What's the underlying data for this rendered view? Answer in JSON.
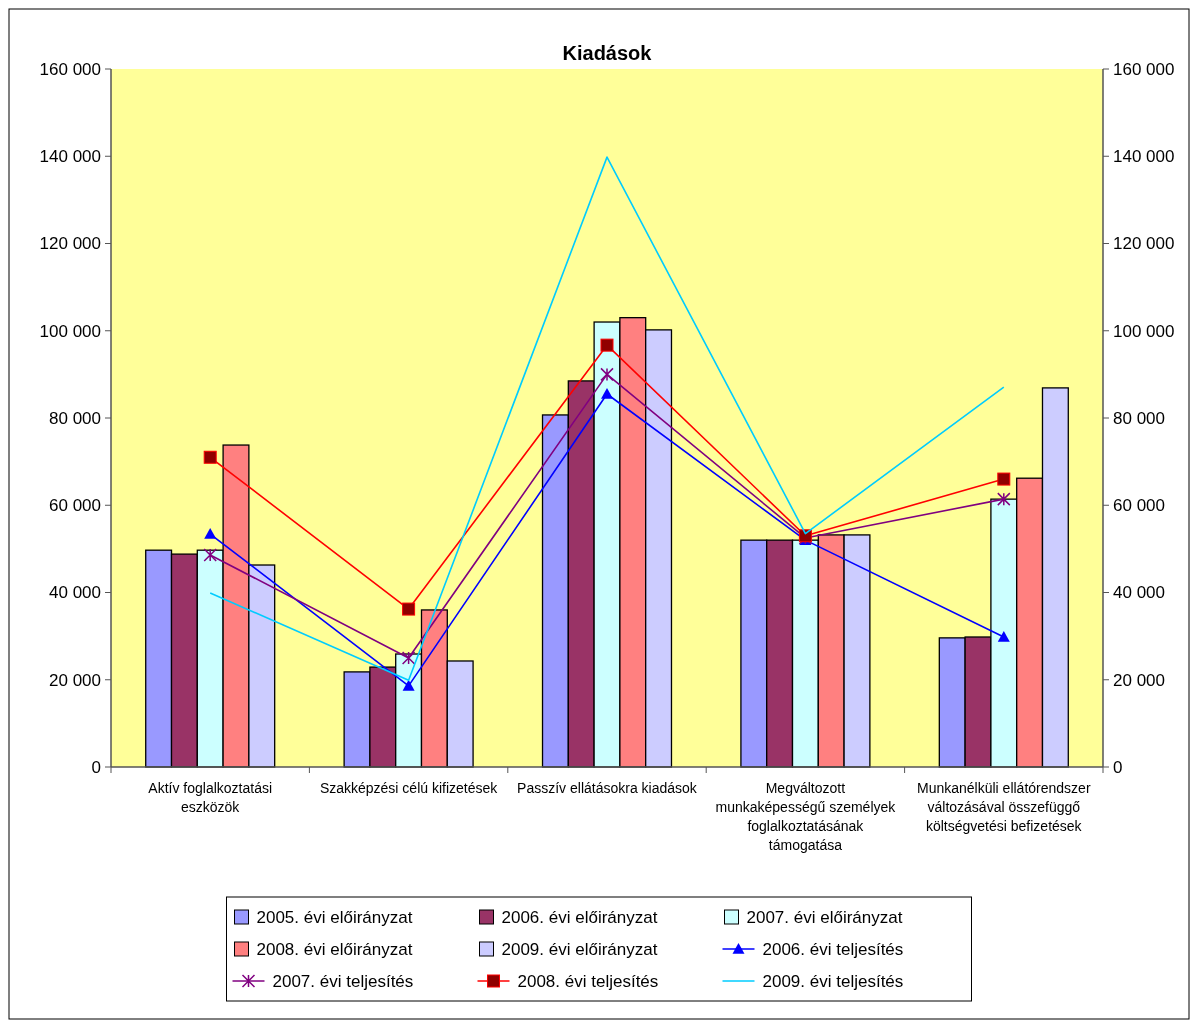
{
  "chart_data": {
    "type": "bar",
    "title": "Kiadások",
    "categories": [
      "Aktív foglalkoztatási eszközök",
      "Szakképzési célú kifizetések",
      "Passzív ellátásokra kiadások",
      "Megváltozott munkaképességű személyek foglalkoztatásának támogatása",
      "Munkanélküli ellátórendszer változásával összefüggő költségvetési befizetések"
    ],
    "series": [
      {
        "name": "2005. évi előirányzat",
        "color": "#9999ff",
        "values": [
          49700,
          21800,
          80700,
          52000,
          29600
        ]
      },
      {
        "name": "2006. évi előirányzat",
        "color": "#993366",
        "values": [
          48800,
          22900,
          88500,
          52000,
          29800
        ]
      },
      {
        "name": "2007. évi előirányzat",
        "color": "#ccffff",
        "values": [
          49700,
          25900,
          102000,
          52000,
          61400
        ]
      },
      {
        "name": "2008. évi előirányzat",
        "color": "#ff8080",
        "values": [
          73800,
          36000,
          103000,
          53200,
          66200
        ]
      },
      {
        "name": "2009. évi előirányzat",
        "color": "#ccccff",
        "values": [
          46300,
          24300,
          100200,
          53200,
          86900
        ]
      },
      {
        "name": "2006. évi teljesítés",
        "type": "line",
        "color": "#0000ff",
        "marker": "triangle",
        "values": [
          53400,
          18600,
          85500,
          52000,
          29800
        ]
      },
      {
        "name": "2007. évi teljesítés",
        "type": "line",
        "color": "#800080",
        "marker": "cross",
        "values": [
          48600,
          25000,
          90000,
          52500,
          61400
        ]
      },
      {
        "name": "2008. évi teljesítés",
        "type": "line",
        "color": "#ff0000",
        "marker": "square",
        "values": [
          71000,
          36200,
          96700,
          53000,
          66000
        ]
      },
      {
        "name": "2009. évi teljesítés",
        "type": "line",
        "color": "#00ccff",
        "marker": "none",
        "values": [
          39900,
          19900,
          139800,
          53500,
          87100
        ]
      }
    ],
    "ylim": [
      0,
      160000
    ],
    "yticks": [
      0,
      {
        "value": 20000,
        "label": "20 000"
      },
      {
        "value": 40000,
        "label": "40 000"
      },
      {
        "value": 60000,
        "label": "60 000"
      },
      {
        "value": 80000,
        "label": "80 000"
      },
      {
        "value": 100000,
        "label": "100 000"
      },
      {
        "value": 120000,
        "label": "120 000"
      },
      {
        "value": 140000,
        "label": "140 000"
      },
      {
        "value": 160000,
        "label": "160 000"
      }
    ],
    "y2lim": [
      0,
      160000
    ],
    "y2ticks": [
      0,
      {
        "value": 20000,
        "label": "20 000"
      },
      {
        "value": 40000,
        "label": "40 000"
      },
      {
        "value": 60000,
        "label": "60 000"
      },
      {
        "value": 80000,
        "label": "80 000"
      },
      {
        "value": 100000,
        "label": "100 000"
      },
      {
        "value": 120000,
        "label": "120 000"
      },
      {
        "value": 140000,
        "label": "140 000"
      },
      {
        "value": 160000,
        "label": "160 000"
      }
    ],
    "grid": false,
    "legend": "bottom"
  }
}
